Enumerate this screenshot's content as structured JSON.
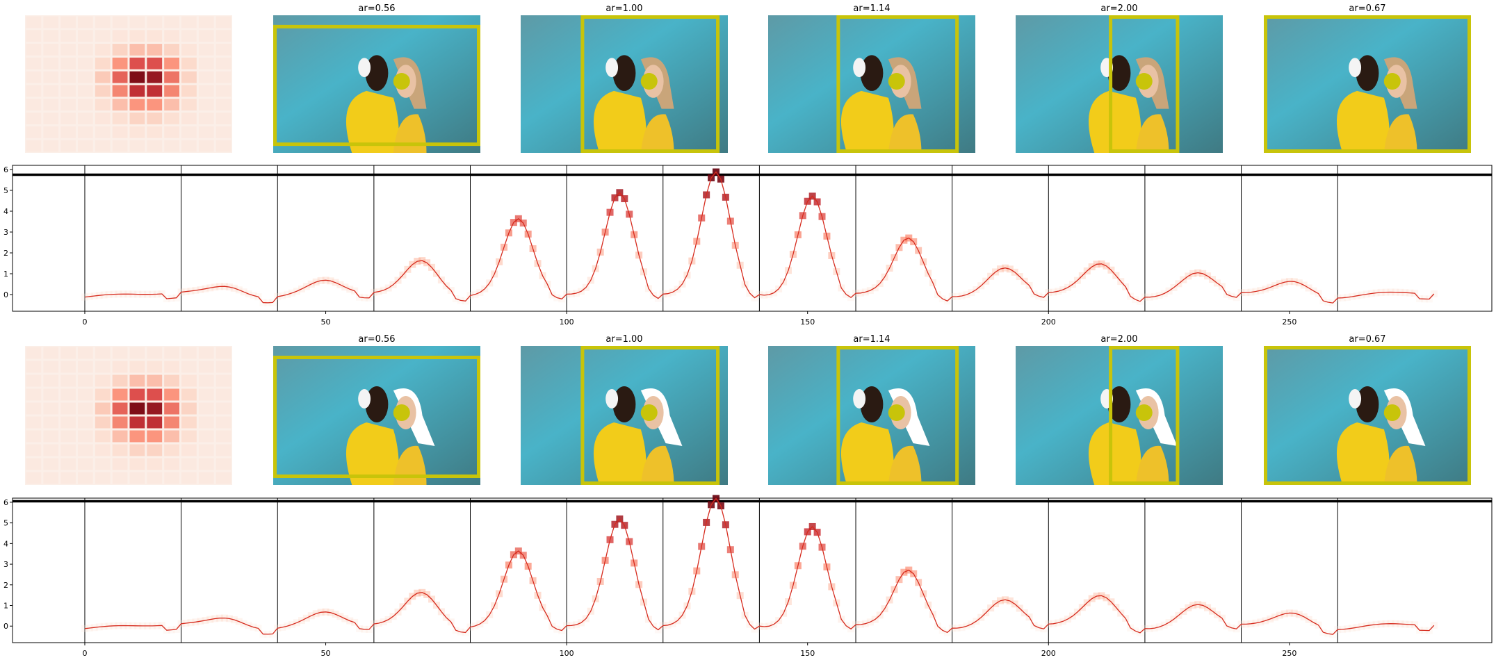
{
  "colors": {
    "frame": "#c8c40a",
    "dot": "#c8c40a",
    "line": "#d62b1e",
    "peak": "#67000d",
    "low": "#fdd7c6",
    "axis": "#000000"
  },
  "chart_data": [
    {
      "type": "image-grid",
      "row": "top",
      "thumbnail_titles": [
        "",
        "ar=0.56",
        "ar=1.00",
        "ar=1.14",
        "ar=2.00",
        "ar=0.67"
      ],
      "heatmap_note": "8x8 grid of red-shaded squares, strongest near center-right",
      "heatmap_values": [
        [
          0.05,
          0.05,
          0.05,
          0.05,
          0.05,
          0.05,
          0.05,
          0.05,
          0.05,
          0.05,
          0.05,
          0.05
        ],
        [
          0.05,
          0.05,
          0.05,
          0.05,
          0.05,
          0.08,
          0.1,
          0.1,
          0.08,
          0.05,
          0.05,
          0.05
        ],
        [
          0.05,
          0.05,
          0.05,
          0.05,
          0.1,
          0.25,
          0.35,
          0.35,
          0.25,
          0.1,
          0.05,
          0.05
        ],
        [
          0.05,
          0.05,
          0.05,
          0.05,
          0.2,
          0.5,
          0.7,
          0.7,
          0.5,
          0.2,
          0.05,
          0.05
        ],
        [
          0.05,
          0.05,
          0.05,
          0.05,
          0.3,
          0.65,
          0.95,
          0.9,
          0.6,
          0.25,
          0.05,
          0.05
        ],
        [
          0.05,
          0.05,
          0.05,
          0.05,
          0.25,
          0.55,
          0.8,
          0.8,
          0.55,
          0.2,
          0.05,
          0.05
        ],
        [
          0.05,
          0.05,
          0.05,
          0.05,
          0.15,
          0.35,
          0.5,
          0.5,
          0.35,
          0.15,
          0.05,
          0.05
        ],
        [
          0.05,
          0.05,
          0.05,
          0.05,
          0.08,
          0.15,
          0.25,
          0.25,
          0.15,
          0.08,
          0.05,
          0.05
        ],
        [
          0.05,
          0.05,
          0.05,
          0.05,
          0.05,
          0.08,
          0.1,
          0.1,
          0.08,
          0.05,
          0.05,
          0.05
        ],
        [
          0.05,
          0.05,
          0.05,
          0.05,
          0.05,
          0.05,
          0.05,
          0.05,
          0.05,
          0.05,
          0.05,
          0.05
        ]
      ]
    },
    {
      "type": "line",
      "row": "top",
      "xlim": [
        -15,
        292
      ],
      "ylim": [
        -0.8,
        6.2
      ],
      "xticks": [
        0,
        50,
        100,
        150,
        200,
        250
      ],
      "yticks": [
        0,
        1,
        2,
        3,
        4,
        5,
        6
      ],
      "hline": 5.75,
      "vlines": [
        0,
        20,
        40,
        60,
        80,
        100,
        120,
        140,
        160,
        180,
        200,
        220,
        240,
        260
      ],
      "peaks": [
        {
          "center": 30,
          "height": 0.4
        },
        {
          "center": 50,
          "height": 0.6
        },
        {
          "center": 70,
          "height": 1.7
        },
        {
          "center": 90,
          "height": 3.5
        },
        {
          "center": 111,
          "height": 5.0
        },
        {
          "center": 131,
          "height": 5.75
        },
        {
          "center": 151,
          "height": 4.8
        },
        {
          "center": 171,
          "height": 2.6
        },
        {
          "center": 191,
          "height": 1.3
        },
        {
          "center": 211,
          "height": 1.4
        },
        {
          "center": 231,
          "height": 1.0
        },
        {
          "center": 251,
          "height": 0.6
        }
      ]
    },
    {
      "type": "image-grid",
      "row": "bottom",
      "thumbnail_titles": [
        "",
        "ar=0.56",
        "ar=1.00",
        "ar=1.14",
        "ar=2.00",
        "ar=0.67"
      ]
    },
    {
      "type": "line",
      "row": "bottom",
      "xlim": [
        -15,
        292
      ],
      "ylim": [
        -0.8,
        6.2
      ],
      "xticks": [
        0,
        50,
        100,
        150,
        200,
        250
      ],
      "yticks": [
        0,
        1,
        2,
        3,
        4,
        5,
        6
      ],
      "hline": 6.05,
      "vlines": [
        0,
        20,
        40,
        60,
        80,
        100,
        120,
        140,
        160,
        180,
        200,
        220,
        240,
        260
      ],
      "peaks": [
        {
          "center": 30,
          "height": 0.4
        },
        {
          "center": 50,
          "height": 0.6
        },
        {
          "center": 70,
          "height": 1.7
        },
        {
          "center": 90,
          "height": 3.5
        },
        {
          "center": 111,
          "height": 5.3
        },
        {
          "center": 131,
          "height": 6.05
        },
        {
          "center": 151,
          "height": 4.9
        },
        {
          "center": 171,
          "height": 2.6
        },
        {
          "center": 191,
          "height": 1.3
        },
        {
          "center": 211,
          "height": 1.4
        },
        {
          "center": 231,
          "height": 1.0
        },
        {
          "center": 251,
          "height": 0.6
        }
      ]
    }
  ]
}
